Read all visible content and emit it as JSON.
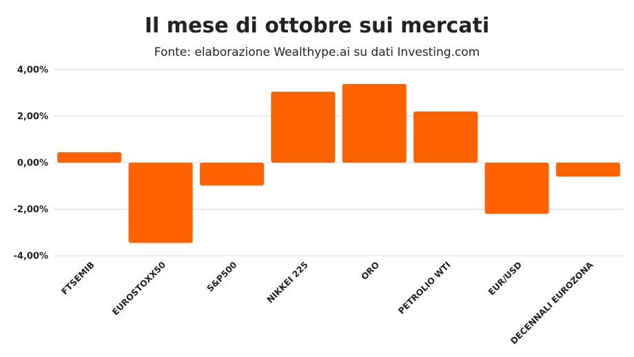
{
  "chart_data": {
    "type": "bar",
    "title": "Il mese di ottobre sui mercati",
    "subtitle": "Fonte: elaborazione Wealthype.ai su dati Investing.com",
    "categories": [
      "FTSEMIB",
      "EUROSTOXX50",
      "S&P500",
      "NIKKEI 225",
      "ORO",
      "PETROLIO WTI",
      "EUR/USD",
      "DECENNALI EUROZONA"
    ],
    "values": [
      0.45,
      -3.45,
      -0.98,
      3.05,
      3.38,
      2.2,
      -2.2,
      -0.6
    ],
    "ylim": [
      -4,
      4
    ],
    "yticks": [
      4,
      2,
      0,
      -2,
      -4
    ],
    "ytick_labels": [
      "4,00%",
      "2,00%",
      "0,00%",
      "-2,00%",
      "-4,00%"
    ],
    "bar_color": "#FF6200",
    "grid": true,
    "xlabel": "",
    "ylabel": ""
  }
}
